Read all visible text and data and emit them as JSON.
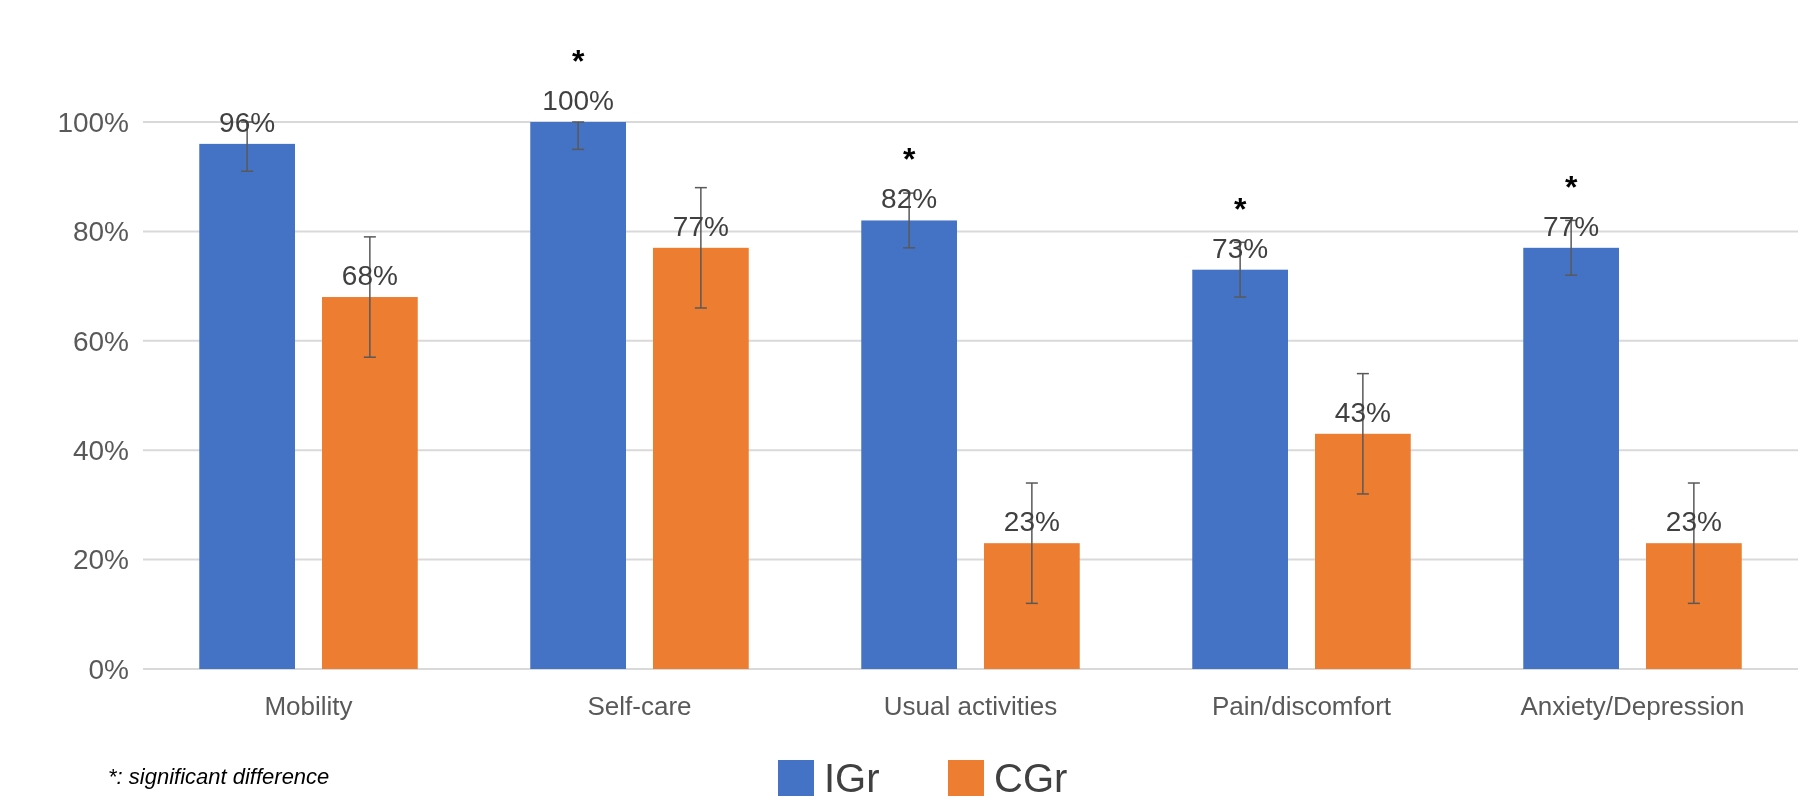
{
  "chart_data": {
    "type": "bar",
    "categories": [
      "Mobility",
      "Self-care",
      "Usual activities",
      "Pain/discomfort",
      "Anxiety/Depression"
    ],
    "series": [
      {
        "name": "IGr",
        "color": "#4472c4",
        "values": [
          96,
          100,
          82,
          73,
          77
        ],
        "errors": [
          [
            91,
            100
          ],
          [
            95,
            100
          ],
          5,
          5,
          5
        ],
        "value_labels": [
          "96%",
          "100%",
          "82%",
          "73%",
          "77%"
        ]
      },
      {
        "name": "CGr",
        "color": "#ed7d31",
        "values": [
          68,
          77,
          23,
          43,
          23
        ],
        "errors": [
          11,
          11,
          11,
          11,
          11
        ],
        "value_labels": [
          "68%",
          "77%",
          "23%",
          "43%",
          "23%"
        ]
      }
    ],
    "ylim": [
      0,
      100
    ],
    "yticks": [
      {
        "value": 0,
        "label": "0%"
      },
      {
        "value": 20,
        "label": "20%"
      },
      {
        "value": 40,
        "label": "40%"
      },
      {
        "value": 60,
        "label": "60%"
      },
      {
        "value": 80,
        "label": "80%"
      },
      {
        "value": 100,
        "label": "100%"
      }
    ],
    "grid": "y",
    "legend": "bottom",
    "annotations": [
      "*",
      "*",
      "*",
      "*",
      "*: significant difference"
    ]
  }
}
